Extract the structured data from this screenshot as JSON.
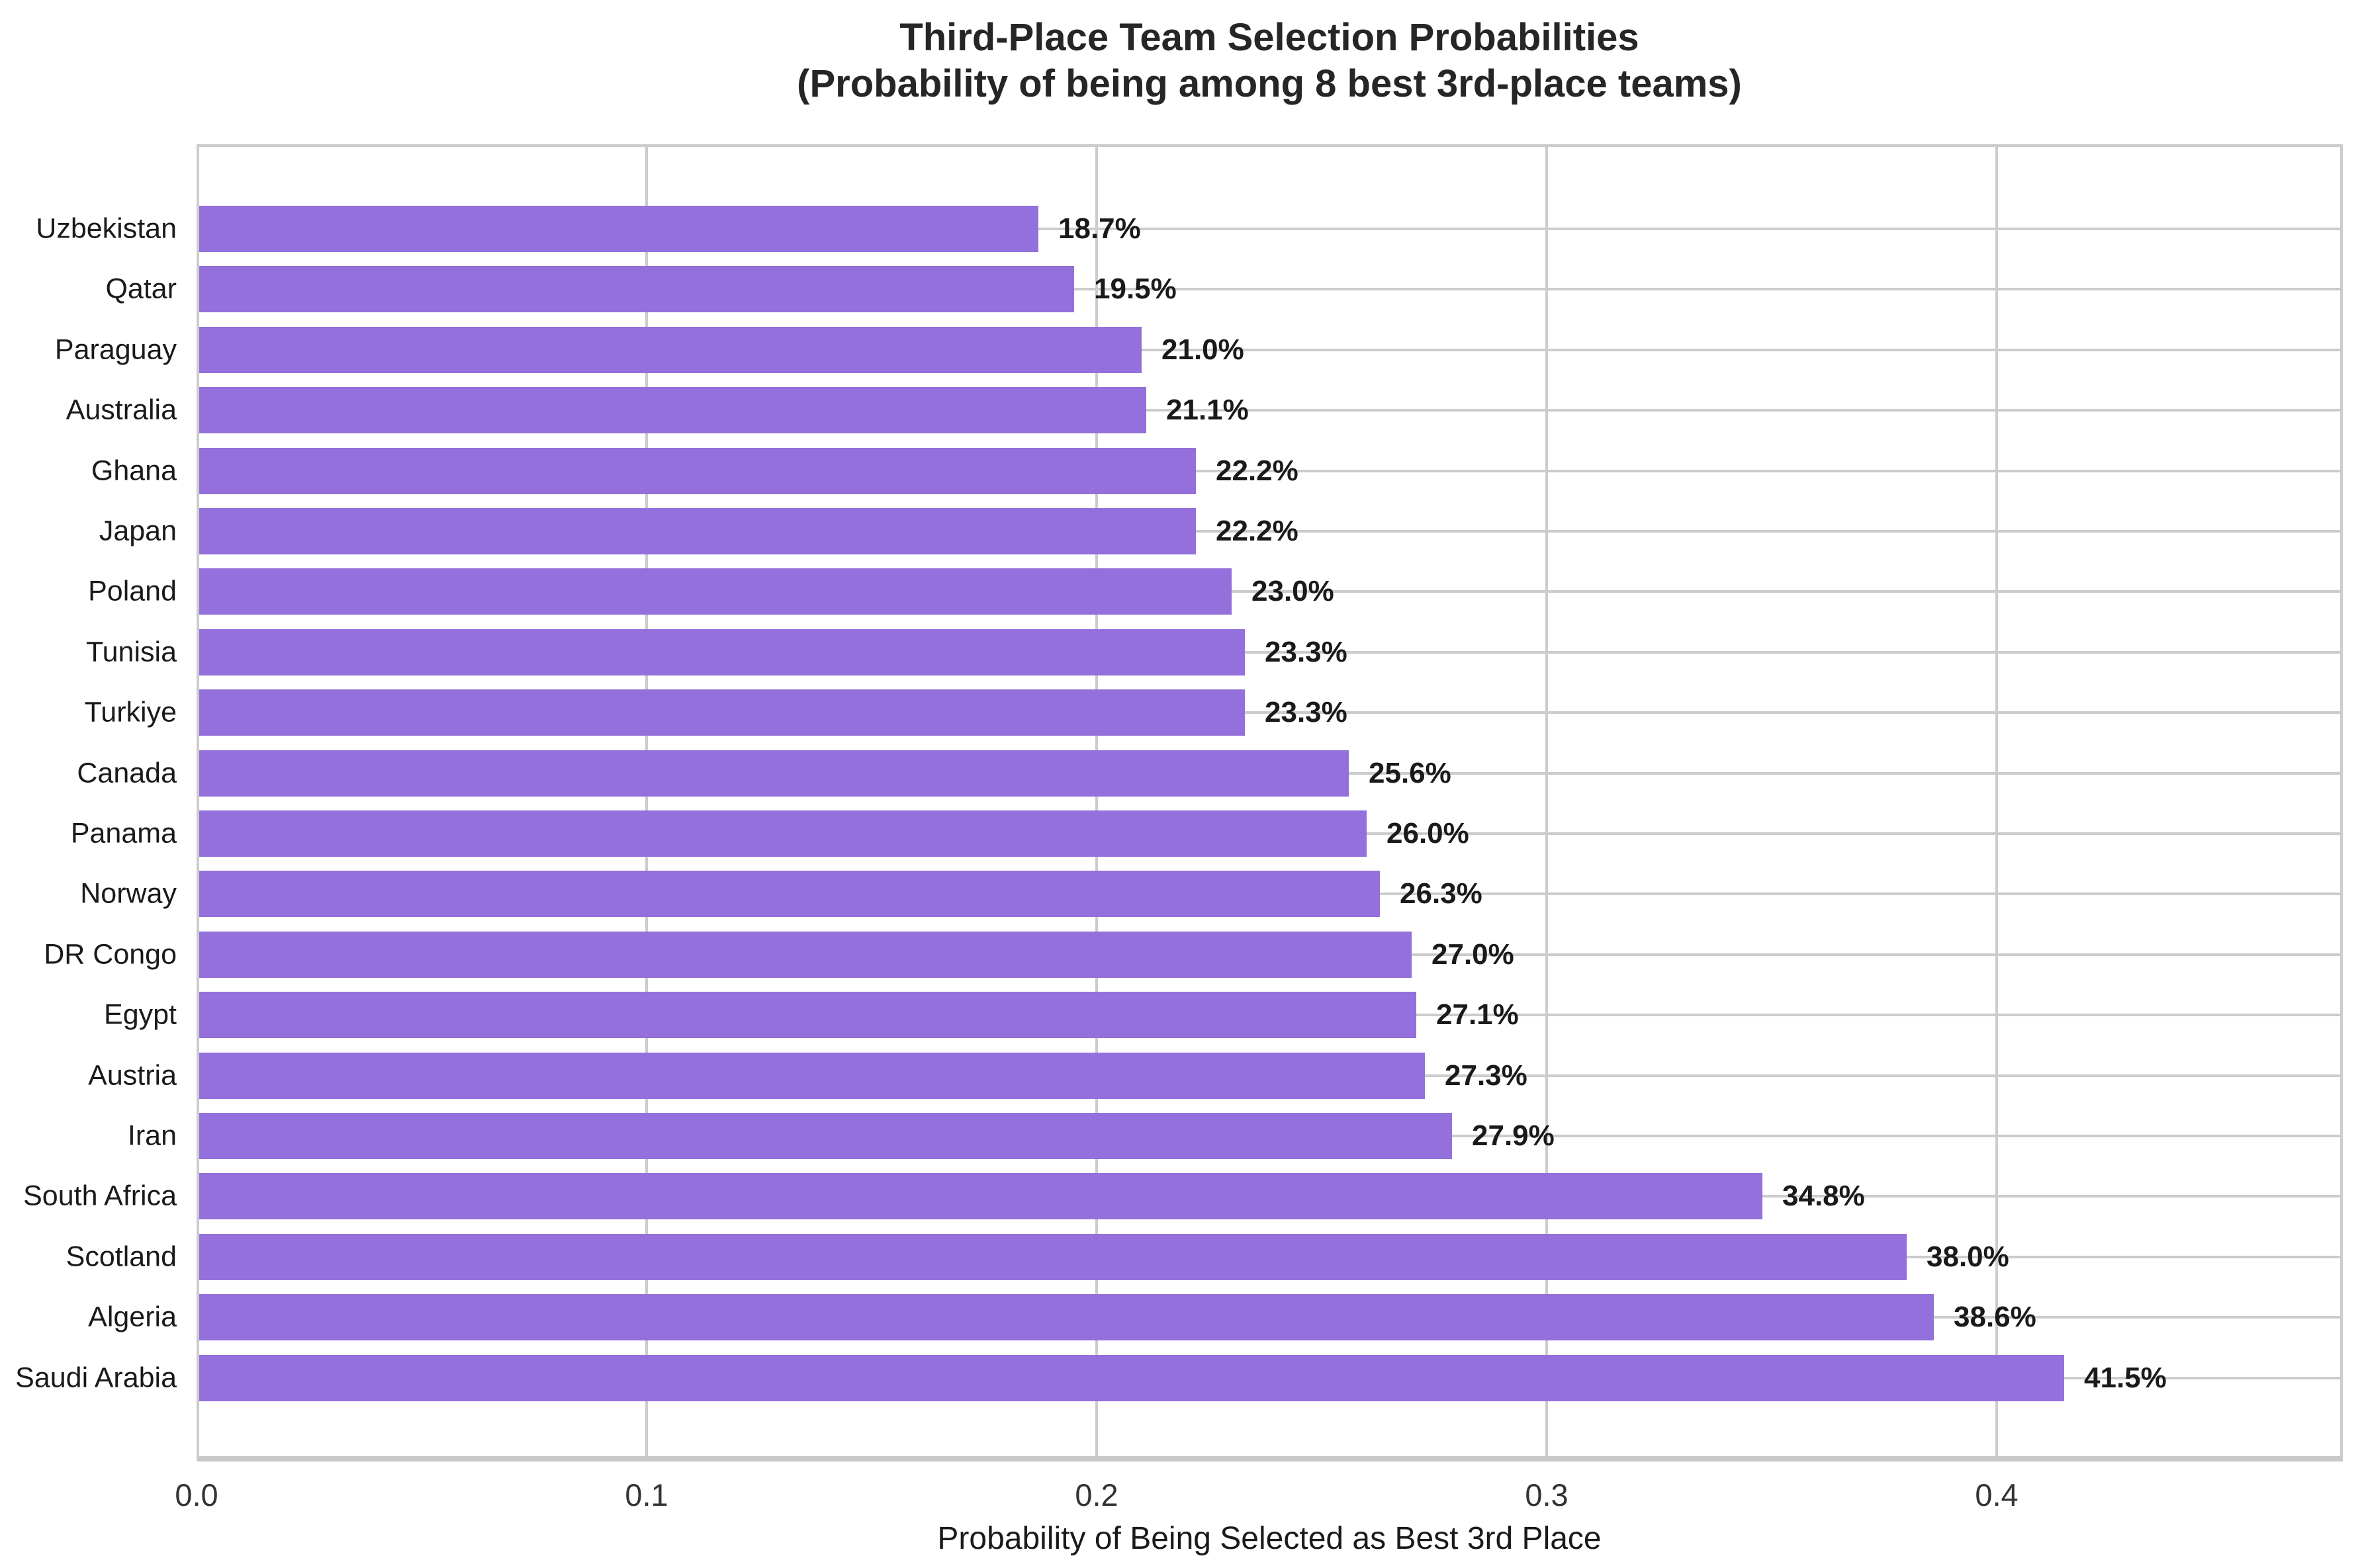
{
  "chart_data": {
    "type": "bar",
    "orientation": "horizontal",
    "title": "Third-Place Team Selection Probabilities",
    "subtitle": "(Probability of being among 8 best 3rd-place teams)",
    "xlabel": "Probability of Being Selected as Best 3rd Place",
    "categories": [
      "Uzbekistan",
      "Qatar",
      "Paraguay",
      "Australia",
      "Ghana",
      "Japan",
      "Poland",
      "Tunisia",
      "Turkiye",
      "Canada",
      "Panama",
      "Norway",
      "DR Congo",
      "Egypt",
      "Austria",
      "Iran",
      "South Africa",
      "Scotland",
      "Algeria",
      "Saudi Arabia"
    ],
    "values": [
      0.187,
      0.195,
      0.21,
      0.211,
      0.222,
      0.222,
      0.23,
      0.233,
      0.233,
      0.256,
      0.26,
      0.263,
      0.27,
      0.271,
      0.273,
      0.279,
      0.348,
      0.38,
      0.386,
      0.415
    ],
    "bar_labels": [
      "18.7%",
      "19.5%",
      "21.0%",
      "21.1%",
      "22.2%",
      "22.2%",
      "23.0%",
      "23.3%",
      "23.3%",
      "25.6%",
      "26.0%",
      "26.3%",
      "27.0%",
      "27.1%",
      "27.3%",
      "27.9%",
      "34.8%",
      "38.0%",
      "38.6%",
      "41.5%"
    ],
    "x_ticks": [
      0.0,
      0.1,
      0.2,
      0.3,
      0.4
    ],
    "x_tick_labels": [
      "0.0",
      "0.1",
      "0.2",
      "0.3",
      "0.4"
    ],
    "xlim": [
      0,
      0.477
    ],
    "grid": true,
    "legend": null,
    "bar_color": "#9370DB",
    "grid_color": "#cccccc",
    "spine_color": "#c8c8c8"
  }
}
